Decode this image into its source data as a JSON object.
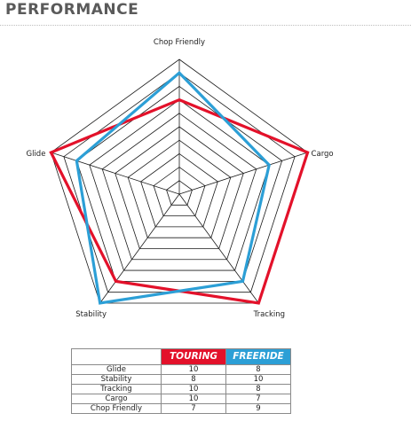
{
  "section": {
    "title": "PERFORMANCE"
  },
  "chart_data": {
    "type": "radar",
    "axes": [
      "Chop Friendly",
      "Cargo",
      "Tracking",
      "Stability",
      "Glide"
    ],
    "range": [
      0,
      10
    ],
    "grid_levels": 10,
    "series": [
      {
        "name": "TOURING",
        "color": "#e3112a",
        "values": {
          "Glide": 10,
          "Stability": 8,
          "Tracking": 10,
          "Cargo": 10,
          "Chop Friendly": 7
        }
      },
      {
        "name": "FREERIDE",
        "color": "#2c9fd6",
        "values": {
          "Glide": 8,
          "Stability": 10,
          "Tracking": 8,
          "Cargo": 7,
          "Chop Friendly": 9
        }
      }
    ]
  },
  "table": {
    "headers": {
      "touring": "TOURING",
      "freeride": "FREERIDE"
    },
    "rows": [
      {
        "label": "Glide",
        "touring": "10",
        "freeride": "8"
      },
      {
        "label": "Stability",
        "touring": "8",
        "freeride": "10"
      },
      {
        "label": "Tracking",
        "touring": "10",
        "freeride": "8"
      },
      {
        "label": "Cargo",
        "touring": "10",
        "freeride": "7"
      },
      {
        "label": "Chop Friendly",
        "touring": "7",
        "freeride": "9"
      }
    ]
  },
  "colors": {
    "touring": "#e3112a",
    "freeride": "#2c9fd6",
    "grid": "#1a1a1a"
  }
}
